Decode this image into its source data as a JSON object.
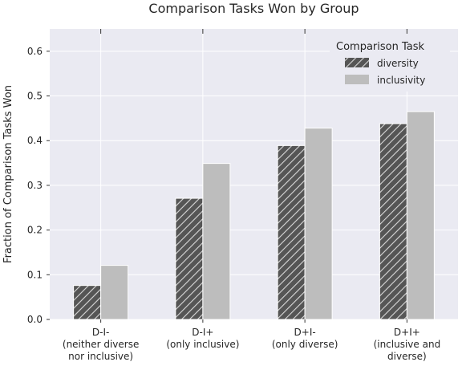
{
  "chart_data": {
    "type": "bar",
    "title": "Comparison Tasks Won by Group",
    "xlabel": "",
    "ylabel": "Fraction of Comparison Tasks Won",
    "ylim": [
      0,
      0.65
    ],
    "yticks": [
      "0.0",
      "0.1",
      "0.2",
      "0.3",
      "0.4",
      "0.5",
      "0.6"
    ],
    "categories": [
      [
        "D-I-",
        "(neither diverse",
        "nor inclusive)"
      ],
      [
        "D-I+",
        "(only inclusive)"
      ],
      [
        "D+I-",
        "(only diverse)"
      ],
      [
        "D+I+",
        "(inclusive and",
        "diverse)"
      ]
    ],
    "series": [
      {
        "name": "diversity",
        "values": [
          0.076,
          0.271,
          0.389,
          0.438
        ],
        "color": "#555555",
        "pattern": "hatched"
      },
      {
        "name": "inclusivity",
        "values": [
          0.121,
          0.349,
          0.428,
          0.465
        ],
        "color": "#bdbdbd",
        "pattern": "solid"
      }
    ],
    "legend": {
      "title": "Comparison Task",
      "position": "top-right"
    },
    "grid": true,
    "background": "#eaeaf2"
  }
}
